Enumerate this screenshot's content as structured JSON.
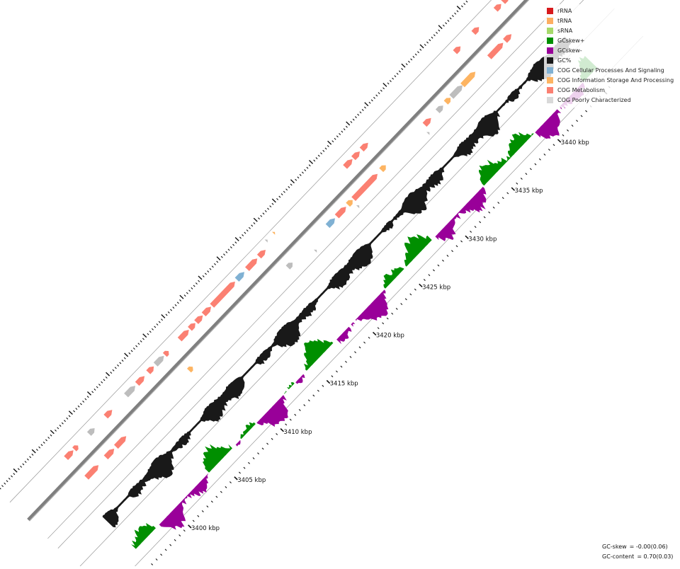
{
  "legend": {
    "items": [
      {
        "label": "rRNA",
        "color": "#d7191c",
        "icon": "rrna-swatch"
      },
      {
        "label": "tRNA",
        "color": "#fdae61",
        "icon": "trna-swatch"
      },
      {
        "label": "sRNA",
        "color": "#a6d96a",
        "icon": "srna-swatch"
      },
      {
        "label": "GCskew+",
        "color": "#008f00",
        "icon": "gcskew-plus-swatch"
      },
      {
        "label": "GCskew-",
        "color": "#990099",
        "icon": "gcskew-minus-swatch"
      },
      {
        "label": "GC%",
        "color": "#191919",
        "icon": "gc-percent-swatch"
      },
      {
        "label": "COG Cellular Processes And Signaling",
        "color": "#80b1d3",
        "icon": "cog-cellular-swatch"
      },
      {
        "label": "COG Information Storage And Processing",
        "color": "#fdb462",
        "icon": "cog-information-swatch"
      },
      {
        "label": "COG Metabolism",
        "color": "#fb8072",
        "icon": "cog-metabolism-swatch"
      },
      {
        "label": "COG Poorly Characterized",
        "color": "#d9d9d9",
        "icon": "cog-poorly-swatch"
      }
    ]
  },
  "axis": {
    "ticks": [
      "3400 kbp",
      "3405 kbp",
      "3410 kbp",
      "3415 kbp",
      "3420 kbp",
      "3425 kbp",
      "3430 kbp",
      "3435 kbp",
      "3440 kbp"
    ]
  },
  "stats": {
    "gc_skew_label": "GC-skew",
    "gc_skew_value": "= -0.00(0.06)",
    "gc_content_label": "GC-content",
    "gc_content_value": "= 0.70(0.03)"
  },
  "colors": {
    "backbone": "#7f7f7f",
    "track_line": "#555555",
    "tick": "#111111",
    "cds_grey": "#bdbdbd"
  },
  "features": {
    "outer_strand": [
      {
        "start": 3397.3,
        "end": 3398.1,
        "cog": "metabolism"
      },
      {
        "start": 3398.2,
        "end": 3398.6,
        "cog": "metabolism"
      },
      {
        "start": 3399.8,
        "end": 3400.4,
        "cog": "poorly"
      },
      {
        "start": 3401.6,
        "end": 3402.3,
        "cog": "metabolism"
      },
      {
        "start": 3403.8,
        "end": 3404.8,
        "cog": "poorly"
      },
      {
        "start": 3405.0,
        "end": 3405.8,
        "cog": "metabolism"
      },
      {
        "start": 3406.2,
        "end": 3406.8,
        "cog": "metabolism"
      },
      {
        "start": 3407.0,
        "end": 3407.9,
        "cog": "poorly"
      },
      {
        "start": 3408.0,
        "end": 3408.4,
        "cog": "metabolism"
      },
      {
        "start": 3409.6,
        "end": 3410.6,
        "cog": "metabolism"
      },
      {
        "start": 3410.7,
        "end": 3411.3,
        "cog": "metabolism"
      },
      {
        "start": 3411.4,
        "end": 3412.1,
        "cog": "metabolism"
      },
      {
        "start": 3412.2,
        "end": 3413.0,
        "cog": "metabolism"
      },
      {
        "start": 3413.1,
        "end": 3415.6,
        "cog": "metabolism"
      },
      {
        "start": 3415.8,
        "end": 3416.6,
        "cog": "cellular"
      },
      {
        "start": 3416.9,
        "end": 3418.0,
        "cog": "metabolism"
      },
      {
        "start": 3418.2,
        "end": 3418.9,
        "cog": "metabolism"
      },
      {
        "start": 3427.5,
        "end": 3428.3,
        "cog": "metabolism"
      },
      {
        "start": 3428.4,
        "end": 3429.1,
        "cog": "metabolism"
      },
      {
        "start": 3429.3,
        "end": 3430.0,
        "cog": "metabolism"
      },
      {
        "start": 3439.4,
        "end": 3440.0,
        "cog": "metabolism"
      },
      {
        "start": 3441.4,
        "end": 3442.0,
        "cog": "metabolism"
      },
      {
        "start": 3443.8,
        "end": 3444.4,
        "cog": "metabolism"
      },
      {
        "start": 3444.6,
        "end": 3445.2,
        "cog": "metabolism"
      }
    ],
    "inner_strand": [
      {
        "start": 3397.3,
        "end": 3398.6,
        "cog": "metabolism"
      },
      {
        "start": 3399.4,
        "end": 3400.3,
        "cog": "metabolism"
      },
      {
        "start": 3400.5,
        "end": 3401.6,
        "cog": "metabolism"
      },
      {
        "start": 3408.4,
        "end": 3408.8,
        "cog": "information"
      },
      {
        "start": 3419.1,
        "end": 3419.6,
        "cog": "poorly"
      },
      {
        "start": 3423.4,
        "end": 3424.2,
        "cog": "cellular"
      },
      {
        "start": 3424.4,
        "end": 3425.4,
        "cog": "metabolism"
      },
      {
        "start": 3425.6,
        "end": 3426.1,
        "cog": "information"
      },
      {
        "start": 3426.2,
        "end": 3428.8,
        "cog": "metabolism"
      },
      {
        "start": 3429.2,
        "end": 3429.7,
        "cog": "information"
      },
      {
        "start": 3433.9,
        "end": 3434.6,
        "cog": "metabolism"
      },
      {
        "start": 3435.3,
        "end": 3435.9,
        "cog": "poorly"
      },
      {
        "start": 3436.2,
        "end": 3436.7,
        "cog": "information"
      },
      {
        "start": 3436.8,
        "end": 3438.0,
        "cog": "poorly"
      },
      {
        "start": 3438.0,
        "end": 3439.4,
        "cog": "information"
      },
      {
        "start": 3440.9,
        "end": 3442.4,
        "cog": "metabolism"
      },
      {
        "start": 3442.6,
        "end": 3443.3,
        "cog": "metabolism"
      }
    ],
    "markers": [
      {
        "pos": 3419.4,
        "track": "outer",
        "cog": "poorly"
      },
      {
        "pos": 3420.2,
        "track": "outer",
        "cog": "information"
      },
      {
        "pos": 3421.4,
        "track": "inner",
        "cog": "poorly"
      },
      {
        "pos": 3433.6,
        "track": "inner",
        "cog": "poorly"
      },
      {
        "pos": 3426.0,
        "track": "inner",
        "cog": "poorly"
      }
    ]
  }
}
